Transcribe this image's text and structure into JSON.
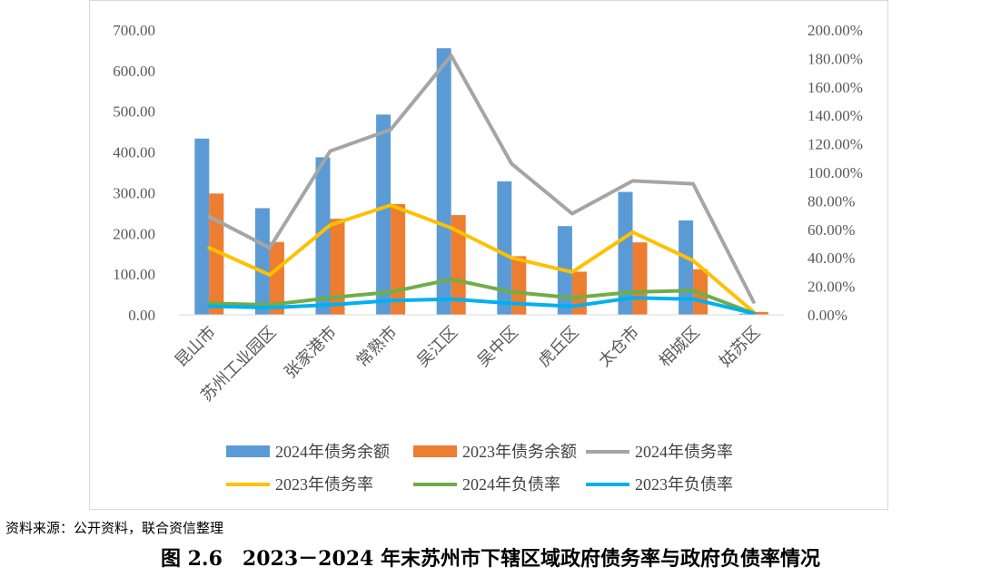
{
  "chart_data": {
    "type": "bar",
    "categories": [
      "昆山市",
      "苏州工业园区",
      "张家港市",
      "常熟市",
      "吴江区",
      "吴中区",
      "虎丘区",
      "太仓市",
      "相城区",
      "姑苏区"
    ],
    "y_left": {
      "min": 0,
      "max": 700,
      "step": 100,
      "tick_labels": [
        "0.00",
        "100.00",
        "200.00",
        "300.00",
        "400.00",
        "500.00",
        "600.00",
        "700.00"
      ]
    },
    "y_right": {
      "min": 0,
      "max": 200,
      "step": 20,
      "tick_labels": [
        "0.00%",
        "20.00%",
        "40.00%",
        "60.00%",
        "80.00%",
        "100.00%",
        "120.00%",
        "140.00%",
        "160.00%",
        "180.00%",
        "200.00%"
      ]
    },
    "bar_series": [
      {
        "name": "2024年债务余额",
        "color": "#5b9bd5",
        "values": [
          433,
          262,
          387,
          492,
          655,
          328,
          218,
          302,
          232,
          3
        ]
      },
      {
        "name": "2023年债务余额",
        "color": "#ed7d31",
        "values": [
          298,
          179,
          236,
          272,
          245,
          144,
          106,
          178,
          112,
          7
        ]
      }
    ],
    "line_series": [
      {
        "name": "2024年债务率",
        "color": "#a5a5a5",
        "values": [
          69,
          47,
          115,
          130,
          182,
          106,
          71,
          94,
          92,
          9
        ]
      },
      {
        "name": "2023年债务率",
        "color": "#ffc000",
        "values": [
          47,
          28,
          63,
          77,
          61,
          40,
          30,
          58,
          38,
          2
        ]
      },
      {
        "name": "2024年负债率",
        "color": "#70ad47",
        "values": [
          8,
          7,
          12,
          16,
          25,
          16,
          12,
          16,
          17,
          1
        ]
      },
      {
        "name": "2023年负债率",
        "color": "#00b0f0",
        "values": [
          6,
          5,
          7,
          10,
          11,
          8,
          6,
          12,
          11,
          1
        ]
      }
    ],
    "legend_position": "bottom"
  },
  "source_note": "资料来源：公开资料，联合资信整理",
  "caption": "图 2.6　2023－2024 年末苏州市下辖区域政府债务率与政府负债率情况"
}
